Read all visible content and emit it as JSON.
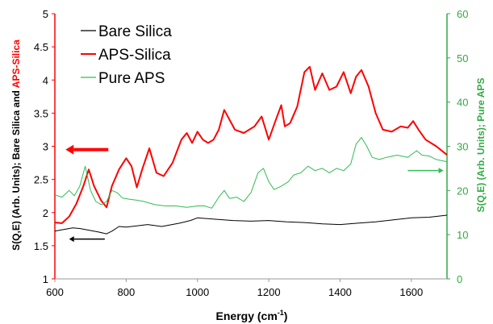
{
  "chart_data": {
    "type": "line",
    "xlabel_main": "Energy (cm",
    "xlabel_sup": "-1",
    "xlabel_close": ")",
    "ylabel_left_part1": "S(Q,E) (Arb. Units); Bare Silica and ",
    "ylabel_left_part2": "APS-Silica",
    "ylabel_right": "S(Q,E) (Arb. Units); Pure APS",
    "xlim": [
      600,
      1700
    ],
    "ylim_left": [
      1,
      5
    ],
    "ylim_right": [
      0,
      60
    ],
    "x_ticks": [
      "600",
      "800",
      "1000",
      "1200",
      "1400",
      "1600"
    ],
    "y_left_ticks": [
      "1",
      "1.5",
      "2",
      "2.5",
      "3",
      "3.5",
      "4",
      "4.5",
      "5"
    ],
    "y_right_ticks": [
      "0",
      "10",
      "20",
      "30",
      "40",
      "50",
      "60"
    ],
    "legend_position": "top-left",
    "series": [
      {
        "name": "Bare Silica",
        "axis": "left",
        "color": "#000000",
        "x": [
          600,
          620,
          650,
          670,
          700,
          720,
          745,
          760,
          780,
          800,
          830,
          860,
          900,
          950,
          980,
          1000,
          1050,
          1100,
          1150,
          1200,
          1250,
          1300,
          1350,
          1400,
          1450,
          1500,
          1550,
          1600,
          1650,
          1700
        ],
        "y": [
          1.72,
          1.74,
          1.77,
          1.76,
          1.73,
          1.71,
          1.68,
          1.72,
          1.79,
          1.78,
          1.8,
          1.82,
          1.79,
          1.84,
          1.88,
          1.92,
          1.9,
          1.88,
          1.87,
          1.88,
          1.86,
          1.85,
          1.83,
          1.82,
          1.84,
          1.86,
          1.89,
          1.92,
          1.93,
          1.96
        ]
      },
      {
        "name": "APS-Silica",
        "axis": "left",
        "color": "#ff0000",
        "x": [
          600,
          620,
          640,
          660,
          680,
          695,
          710,
          730,
          745,
          760,
          780,
          800,
          815,
          830,
          845,
          865,
          885,
          905,
          930,
          955,
          970,
          985,
          1000,
          1015,
          1030,
          1045,
          1060,
          1075,
          1090,
          1105,
          1130,
          1160,
          1180,
          1200,
          1220,
          1235,
          1245,
          1260,
          1280,
          1300,
          1315,
          1330,
          1350,
          1370,
          1390,
          1410,
          1430,
          1445,
          1460,
          1480,
          1500,
          1520,
          1545,
          1570,
          1590,
          1605,
          1620,
          1640,
          1670,
          1700
        ],
        "y": [
          1.85,
          1.84,
          1.94,
          2.13,
          2.4,
          2.65,
          2.4,
          2.18,
          2.08,
          2.4,
          2.65,
          2.82,
          2.7,
          2.38,
          2.65,
          2.97,
          2.6,
          2.55,
          2.75,
          3.1,
          3.2,
          3.05,
          3.22,
          3.1,
          3.05,
          3.1,
          3.25,
          3.55,
          3.4,
          3.25,
          3.2,
          3.3,
          3.45,
          3.1,
          3.4,
          3.62,
          3.3,
          3.35,
          3.6,
          4.12,
          4.2,
          3.85,
          4.1,
          3.85,
          3.9,
          4.12,
          3.8,
          4.05,
          4.15,
          3.9,
          3.5,
          3.25,
          3.22,
          3.3,
          3.28,
          3.38,
          3.25,
          3.1,
          3.0,
          2.87
        ]
      },
      {
        "name": "Pure APS",
        "axis": "right",
        "color": "#33bb55",
        "x": [
          600,
          620,
          640,
          655,
          670,
          685,
          700,
          715,
          730,
          745,
          760,
          775,
          790,
          810,
          830,
          850,
          880,
          910,
          940,
          970,
          1000,
          1020,
          1040,
          1060,
          1075,
          1090,
          1110,
          1130,
          1150,
          1170,
          1185,
          1200,
          1215,
          1235,
          1255,
          1270,
          1290,
          1310,
          1330,
          1350,
          1370,
          1390,
          1410,
          1430,
          1445,
          1460,
          1475,
          1490,
          1510,
          1530,
          1560,
          1590,
          1615,
          1630,
          1650,
          1670,
          1700
        ],
        "y": [
          19,
          18.5,
          20,
          18.8,
          21,
          25.5,
          20,
          17.5,
          16.8,
          17.5,
          20,
          19.5,
          18.3,
          18,
          17.8,
          17.5,
          16.8,
          16.5,
          16.5,
          16.2,
          16.5,
          16.5,
          16.0,
          18.5,
          20.0,
          18.2,
          18.5,
          17.5,
          19.5,
          24.0,
          25.0,
          22.0,
          20.2,
          21.0,
          22.0,
          23.5,
          24.0,
          25.5,
          24.5,
          25.0,
          24.0,
          25.0,
          24.5,
          26.0,
          30.5,
          32.0,
          30.0,
          27.5,
          27.0,
          27.5,
          28.0,
          27.5,
          29.0,
          28.0,
          27.8,
          27.0,
          26.5
        ]
      }
    ],
    "arrows": [
      {
        "series": "APS-Silica",
        "axis": "left",
        "direction": "left",
        "x_from": 750,
        "x_to": 630,
        "y": 2.95,
        "color": "#ff0000",
        "width": 4
      },
      {
        "series": "Bare Silica",
        "axis": "left",
        "direction": "left",
        "x_from": 740,
        "x_to": 640,
        "y": 1.6,
        "color": "#000000",
        "width": 1.5
      },
      {
        "series": "Pure APS",
        "axis": "right",
        "direction": "right",
        "x_from": 1590,
        "x_to": 1690,
        "y": 24.5,
        "color": "#33bb55",
        "width": 1.5
      }
    ]
  }
}
